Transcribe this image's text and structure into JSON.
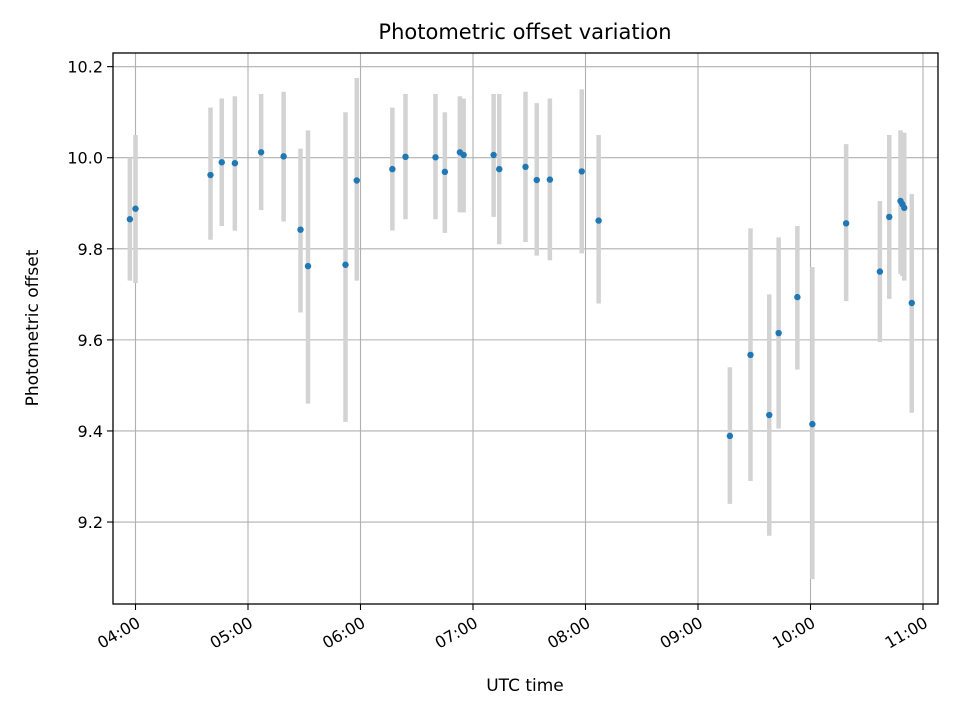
{
  "chart_data": {
    "type": "scatter",
    "title": "Photometric offset variation",
    "xlabel": "UTC time",
    "ylabel": "Photometric offset",
    "x_ticks": [
      "04:00",
      "05:00",
      "06:00",
      "07:00",
      "08:00",
      "09:00",
      "10:00",
      "11:00"
    ],
    "y_ticks": [
      "9.2",
      "9.4",
      "9.6",
      "9.8",
      "10.0",
      "10.2"
    ],
    "xlim": [
      "03:48",
      "11:08"
    ],
    "ylim": [
      9.02,
      10.23
    ],
    "grid": true,
    "colors": {
      "point": "#1f77b4",
      "errorbar": "#d3d3d3",
      "grid": "#b0b0b0"
    },
    "points": [
      {
        "x": "03:57",
        "y": 9.865,
        "ylow": 9.73,
        "yhigh": 10.0
      },
      {
        "x": "04:00",
        "y": 9.888,
        "ylow": 9.725,
        "yhigh": 10.05
      },
      {
        "x": "04:40",
        "y": 9.962,
        "ylow": 9.82,
        "yhigh": 10.11
      },
      {
        "x": "04:46",
        "y": 9.99,
        "ylow": 9.85,
        "yhigh": 10.13
      },
      {
        "x": "04:53",
        "y": 9.988,
        "ylow": 9.84,
        "yhigh": 10.135
      },
      {
        "x": "05:07",
        "y": 10.012,
        "ylow": 9.885,
        "yhigh": 10.14
      },
      {
        "x": "05:19",
        "y": 10.003,
        "ylow": 9.86,
        "yhigh": 10.145
      },
      {
        "x": "05:28",
        "y": 9.842,
        "ylow": 9.66,
        "yhigh": 10.02
      },
      {
        "x": "05:32",
        "y": 9.762,
        "ylow": 9.46,
        "yhigh": 10.06
      },
      {
        "x": "05:52",
        "y": 9.765,
        "ylow": 9.42,
        "yhigh": 10.1
      },
      {
        "x": "05:58",
        "y": 9.95,
        "ylow": 9.73,
        "yhigh": 10.175
      },
      {
        "x": "06:17",
        "y": 9.975,
        "ylow": 9.84,
        "yhigh": 10.11
      },
      {
        "x": "06:24",
        "y": 10.002,
        "ylow": 9.865,
        "yhigh": 10.14
      },
      {
        "x": "06:40",
        "y": 10.001,
        "ylow": 9.865,
        "yhigh": 10.14
      },
      {
        "x": "06:45",
        "y": 9.969,
        "ylow": 9.835,
        "yhigh": 10.1
      },
      {
        "x": "06:53",
        "y": 10.012,
        "ylow": 9.88,
        "yhigh": 10.135
      },
      {
        "x": "06:55",
        "y": 10.006,
        "ylow": 9.88,
        "yhigh": 10.13
      },
      {
        "x": "07:11",
        "y": 10.006,
        "ylow": 9.87,
        "yhigh": 10.14
      },
      {
        "x": "07:14",
        "y": 9.975,
        "ylow": 9.81,
        "yhigh": 10.14
      },
      {
        "x": "07:28",
        "y": 9.98,
        "ylow": 9.815,
        "yhigh": 10.145
      },
      {
        "x": "07:34",
        "y": 9.951,
        "ylow": 9.785,
        "yhigh": 10.12
      },
      {
        "x": "07:41",
        "y": 9.952,
        "ylow": 9.775,
        "yhigh": 10.13
      },
      {
        "x": "07:58",
        "y": 9.97,
        "ylow": 9.79,
        "yhigh": 10.15
      },
      {
        "x": "08:07",
        "y": 9.862,
        "ylow": 9.68,
        "yhigh": 10.05
      },
      {
        "x": "09:17",
        "y": 9.389,
        "ylow": 9.24,
        "yhigh": 9.54
      },
      {
        "x": "09:28",
        "y": 9.567,
        "ylow": 9.29,
        "yhigh": 9.845
      },
      {
        "x": "09:38",
        "y": 9.435,
        "ylow": 9.17,
        "yhigh": 9.7
      },
      {
        "x": "09:43",
        "y": 9.615,
        "ylow": 9.405,
        "yhigh": 9.825
      },
      {
        "x": "09:53",
        "y": 9.694,
        "ylow": 9.535,
        "yhigh": 9.85
      },
      {
        "x": "10:01",
        "y": 9.415,
        "ylow": 9.075,
        "yhigh": 9.76
      },
      {
        "x": "10:19",
        "y": 9.856,
        "ylow": 9.685,
        "yhigh": 10.03
      },
      {
        "x": "10:37",
        "y": 9.75,
        "ylow": 9.595,
        "yhigh": 9.905
      },
      {
        "x": "10:42",
        "y": 9.87,
        "ylow": 9.69,
        "yhigh": 10.05
      },
      {
        "x": "10:48",
        "y": 9.905,
        "ylow": 9.745,
        "yhigh": 10.06
      },
      {
        "x": "10:49",
        "y": 9.898,
        "ylow": 9.74,
        "yhigh": 10.055
      },
      {
        "x": "10:50",
        "y": 9.89,
        "ylow": 9.73,
        "yhigh": 10.055
      },
      {
        "x": "10:54",
        "y": 9.681,
        "ylow": 9.44,
        "yhigh": 9.92
      }
    ]
  }
}
